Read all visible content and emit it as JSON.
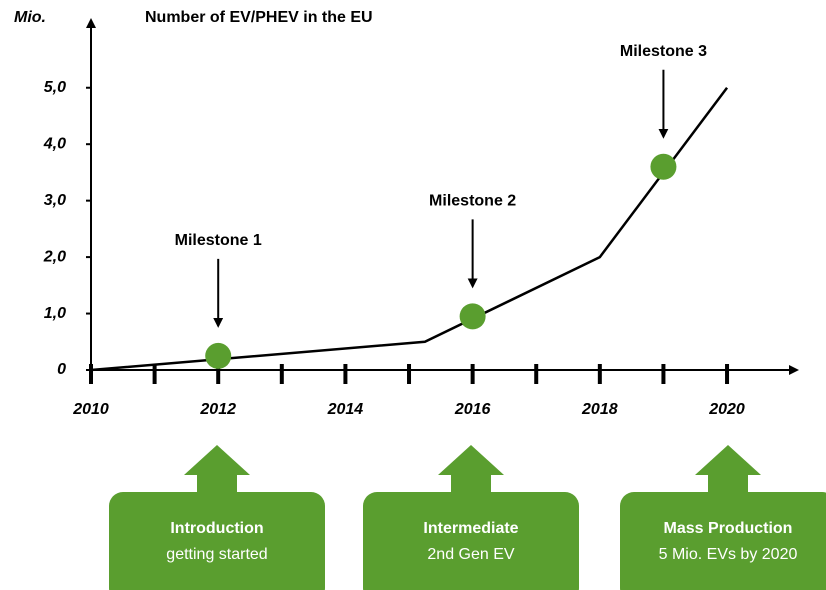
{
  "chart_data": {
    "type": "line",
    "title": "Number of EV/PHEV in the EU",
    "ylabel": "Mio.",
    "x": [
      2010,
      2015.25,
      2018,
      2020
    ],
    "values": [
      0,
      0.5,
      2,
      5
    ],
    "color": "#000000",
    "xlim": [
      2010,
      2021.1
    ],
    "ylim": [
      0,
      6.2
    ],
    "xticks": [
      2010,
      2012,
      2014,
      2016,
      2018,
      2020
    ],
    "yticks": [
      0,
      {
        "value": 1,
        "label": "1,0"
      },
      {
        "value": 2,
        "label": "2,0"
      },
      {
        "value": 3,
        "label": "3,0"
      },
      {
        "value": 4,
        "label": "4,0"
      },
      {
        "value": 5,
        "label": "5,0"
      }
    ],
    "annotations": [
      {
        "label": "Milestone 1",
        "x": 2012,
        "y": 0.25
      },
      {
        "label": "Milestone 2",
        "x": 2016,
        "y": 0.95
      },
      {
        "label": "Milestone 3",
        "x": 2019,
        "y": 3.6
      }
    ],
    "marker_color": "#5a9e2f",
    "phases": [
      {
        "title": "Introduction",
        "subtitle": "getting started"
      },
      {
        "title": "Intermediate",
        "subtitle": "2nd Gen EV"
      },
      {
        "title": "Mass Production",
        "subtitle": "5 Mio. EVs by 2020"
      }
    ]
  }
}
